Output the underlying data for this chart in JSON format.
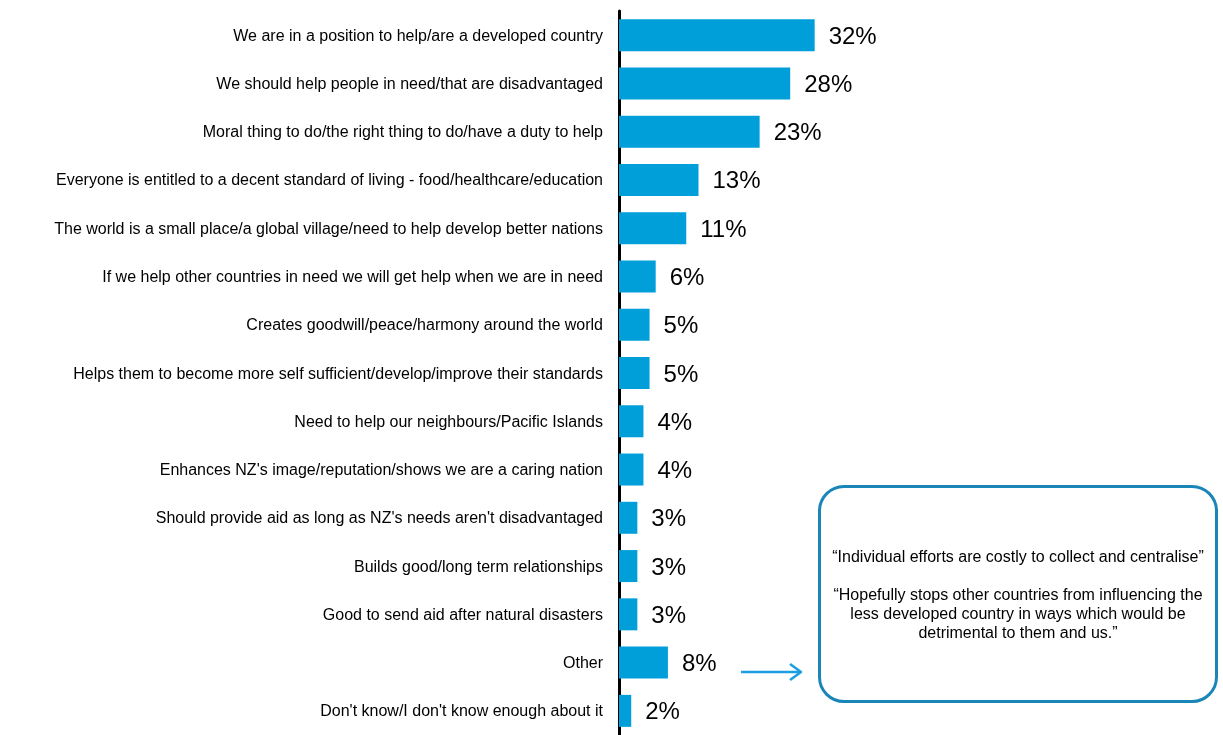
{
  "chart_data": {
    "type": "bar",
    "orientation": "horizontal",
    "categories": [
      "We are in a position to help/are a developed country",
      "We should help people in need/that are disadvantaged",
      "Moral thing to do/the right thing to do/have a duty to help",
      "Everyone is entitled to a decent standard of living - food/healthcare/education",
      "The world is a small place/a global village/need to help develop better nations",
      "If we help other countries in need we will get help when we are in need",
      "Creates goodwill/peace/harmony around the world",
      "Helps them to become more self sufficient/develop/improve their standards",
      "Need to help our neighbours/Pacific Islands",
      "Enhances NZ's image/reputation/shows we are a caring nation",
      "Should provide aid as long as NZ's needs aren't disadvantaged",
      "Builds good/long term relationships",
      "Good to send aid after natural disasters",
      "Other",
      "Don't know/I don't know enough about it"
    ],
    "values": [
      32,
      28,
      23,
      13,
      11,
      6,
      5,
      5,
      4,
      4,
      3,
      3,
      3,
      8,
      2
    ],
    "value_labels": [
      "32%",
      "28%",
      "23%",
      "13%",
      "11%",
      "6%",
      "5%",
      "5%",
      "4%",
      "4%",
      "3%",
      "3%",
      "3%",
      "8%",
      "2%"
    ],
    "color": "#009fda",
    "annotations": [
      "“Individual efforts are costly to collect and centralise”",
      "“Hopefully stops other countries from influencing the less developed country in ways which would be detrimental to them and us.”"
    ]
  }
}
